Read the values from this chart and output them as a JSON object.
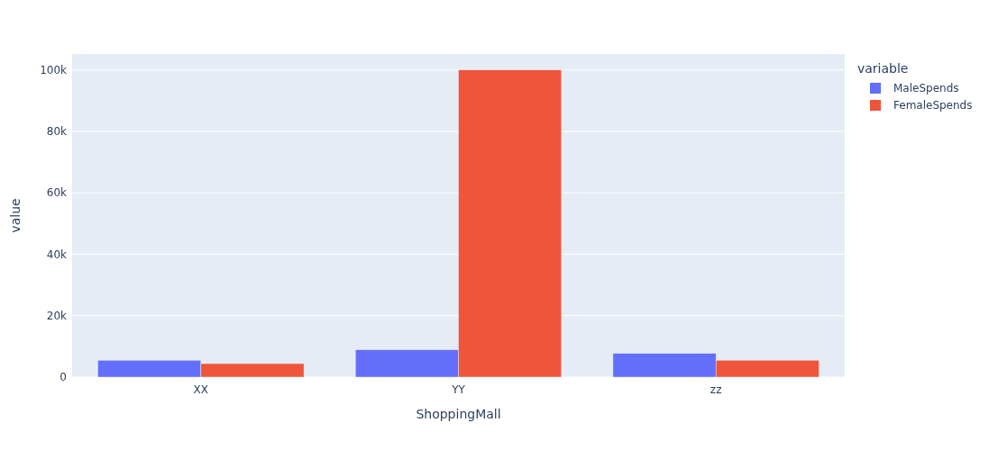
{
  "chart_data": {
    "type": "bar",
    "xlabel": "ShoppingMall",
    "ylabel": "value",
    "legend_title": "variable",
    "categories": [
      "XX",
      "YY",
      "zz"
    ],
    "series": [
      {
        "name": "MaleSpends",
        "color": "#636efa",
        "values": [
          5500,
          8900,
          7700
        ]
      },
      {
        "name": "FemaleSpends",
        "color": "#ef553b",
        "values": [
          4400,
          100000,
          5500
        ]
      }
    ],
    "ylim": [
      0,
      105200
    ],
    "yticks": [
      0,
      {
        "value": 20000,
        "label": "20k"
      },
      {
        "value": 40000,
        "label": "40k"
      },
      {
        "value": 60000,
        "label": "60k"
      },
      {
        "value": 80000,
        "label": "80k"
      },
      {
        "value": 100000,
        "label": "100k"
      }
    ],
    "grid": "y",
    "legend": "right"
  }
}
